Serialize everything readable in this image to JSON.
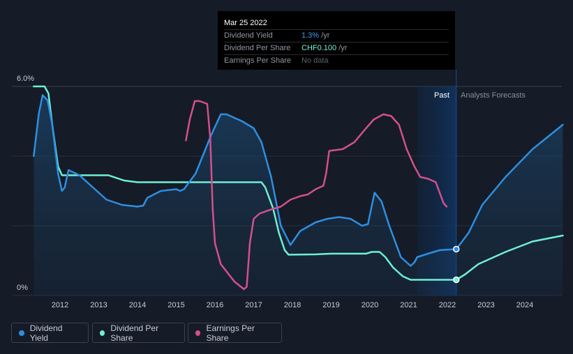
{
  "tooltip": {
    "date": "Mar 25 2022",
    "rows": [
      {
        "label": "Dividend Yield",
        "value": "1.3%",
        "unit": " /yr"
      },
      {
        "label": "Dividend Per Share",
        "value": "CHF0.100",
        "unit": " /yr"
      },
      {
        "label": "Earnings Per Share",
        "value": "No data",
        "unit": ""
      }
    ]
  },
  "regions": {
    "past": "Past",
    "forecast": "Analysts Forecasts"
  },
  "legend": [
    {
      "label": "Dividend Yield",
      "color": "#2e8fe0"
    },
    {
      "label": "Dividend Per Share",
      "color": "#6fefd5"
    },
    {
      "label": "Earnings Per Share",
      "color": "#d2508c"
    }
  ],
  "chart_data": {
    "type": "line",
    "y_tick_labels": [
      "6.0%",
      "0%"
    ],
    "ylim": [
      0,
      6
    ],
    "x_tick_labels": [
      "2012",
      "2013",
      "2014",
      "2015",
      "2016",
      "2017",
      "2018",
      "2019",
      "2020",
      "2021",
      "2022",
      "2023",
      "2024"
    ],
    "xlim": [
      2011.3,
      2025.0
    ],
    "past_end": 2022.23,
    "series": [
      {
        "name": "Dividend Yield",
        "color": "#2e8fe0",
        "points": [
          [
            2011.32,
            4.0
          ],
          [
            2011.45,
            5.2
          ],
          [
            2011.55,
            5.75
          ],
          [
            2011.68,
            5.6
          ],
          [
            2011.8,
            4.9
          ],
          [
            2011.95,
            3.5
          ],
          [
            2012.05,
            3.0
          ],
          [
            2012.12,
            3.1
          ],
          [
            2012.22,
            3.6
          ],
          [
            2012.5,
            3.45
          ],
          [
            2013.0,
            2.95
          ],
          [
            2013.2,
            2.75
          ],
          [
            2013.6,
            2.6
          ],
          [
            2014.0,
            2.55
          ],
          [
            2014.15,
            2.58
          ],
          [
            2014.25,
            2.8
          ],
          [
            2014.6,
            3.0
          ],
          [
            2015.0,
            3.05
          ],
          [
            2015.1,
            3.0
          ],
          [
            2015.2,
            3.05
          ],
          [
            2015.5,
            3.5
          ],
          [
            2015.9,
            4.6
          ],
          [
            2016.15,
            5.2
          ],
          [
            2016.3,
            5.2
          ],
          [
            2016.7,
            5.0
          ],
          [
            2017.0,
            4.8
          ],
          [
            2017.2,
            4.4
          ],
          [
            2017.45,
            3.4
          ],
          [
            2017.7,
            2.0
          ],
          [
            2017.95,
            1.45
          ],
          [
            2018.2,
            1.85
          ],
          [
            2018.6,
            2.1
          ],
          [
            2018.9,
            2.2
          ],
          [
            2019.2,
            2.25
          ],
          [
            2019.5,
            2.2
          ],
          [
            2019.8,
            2.0
          ],
          [
            2019.95,
            2.05
          ],
          [
            2020.12,
            2.95
          ],
          [
            2020.3,
            2.7
          ],
          [
            2020.5,
            2.0
          ],
          [
            2020.8,
            1.1
          ],
          [
            2021.05,
            0.85
          ],
          [
            2021.15,
            0.95
          ],
          [
            2021.22,
            1.1
          ],
          [
            2021.5,
            1.2
          ],
          [
            2021.8,
            1.3
          ],
          [
            2022.23,
            1.33
          ],
          [
            2022.55,
            1.8
          ],
          [
            2022.9,
            2.6
          ],
          [
            2023.5,
            3.4
          ],
          [
            2024.2,
            4.2
          ],
          [
            2024.98,
            4.9
          ]
        ]
      },
      {
        "name": "Dividend Per Share",
        "color": "#6fefd5",
        "points": [
          [
            2011.32,
            6.0
          ],
          [
            2011.6,
            6.0
          ],
          [
            2011.7,
            5.8
          ],
          [
            2011.8,
            4.9
          ],
          [
            2011.95,
            3.7
          ],
          [
            2012.05,
            3.45
          ],
          [
            2013.25,
            3.45
          ],
          [
            2013.65,
            3.3
          ],
          [
            2014.0,
            3.25
          ],
          [
            2015.0,
            3.25
          ],
          [
            2017.2,
            3.25
          ],
          [
            2017.3,
            3.1
          ],
          [
            2017.5,
            2.5
          ],
          [
            2017.65,
            1.8
          ],
          [
            2017.8,
            1.3
          ],
          [
            2017.9,
            1.17
          ],
          [
            2018.6,
            1.18
          ],
          [
            2019.0,
            1.2
          ],
          [
            2019.9,
            1.2
          ],
          [
            2020.05,
            1.25
          ],
          [
            2020.25,
            1.25
          ],
          [
            2020.4,
            1.1
          ],
          [
            2020.6,
            0.8
          ],
          [
            2020.85,
            0.55
          ],
          [
            2021.05,
            0.45
          ],
          [
            2021.2,
            0.45
          ],
          [
            2022.23,
            0.45
          ],
          [
            2022.45,
            0.6
          ],
          [
            2022.8,
            0.9
          ],
          [
            2023.5,
            1.25
          ],
          [
            2024.2,
            1.55
          ],
          [
            2024.98,
            1.72
          ]
        ]
      },
      {
        "name": "Earnings Per Share",
        "color": "#d2508c",
        "points": [
          [
            2015.25,
            4.45
          ],
          [
            2015.35,
            5.05
          ],
          [
            2015.48,
            5.58
          ],
          [
            2015.6,
            5.58
          ],
          [
            2015.8,
            5.5
          ],
          [
            2015.88,
            4.5
          ],
          [
            2015.94,
            2.5
          ],
          [
            2016.0,
            1.5
          ],
          [
            2016.15,
            0.9
          ],
          [
            2016.5,
            0.4
          ],
          [
            2016.75,
            0.18
          ],
          [
            2016.82,
            0.25
          ],
          [
            2016.9,
            1.5
          ],
          [
            2017.0,
            2.2
          ],
          [
            2017.15,
            2.35
          ],
          [
            2017.4,
            2.45
          ],
          [
            2017.7,
            2.55
          ],
          [
            2017.95,
            2.75
          ],
          [
            2018.2,
            2.85
          ],
          [
            2018.4,
            2.9
          ],
          [
            2018.6,
            3.05
          ],
          [
            2018.8,
            3.15
          ],
          [
            2018.87,
            3.5
          ],
          [
            2018.95,
            4.15
          ],
          [
            2019.3,
            4.2
          ],
          [
            2019.6,
            4.4
          ],
          [
            2019.9,
            4.8
          ],
          [
            2020.1,
            5.05
          ],
          [
            2020.35,
            5.2
          ],
          [
            2020.55,
            5.15
          ],
          [
            2020.75,
            4.9
          ],
          [
            2020.95,
            4.2
          ],
          [
            2021.15,
            3.7
          ],
          [
            2021.3,
            3.4
          ],
          [
            2021.5,
            3.35
          ],
          [
            2021.7,
            3.25
          ],
          [
            2021.9,
            2.65
          ],
          [
            2021.98,
            2.55
          ]
        ]
      }
    ],
    "markers": [
      {
        "series": "Dividend Yield",
        "x": 2022.23,
        "y": 1.33
      },
      {
        "series": "Dividend Per Share",
        "x": 2022.23,
        "y": 0.45
      }
    ]
  }
}
